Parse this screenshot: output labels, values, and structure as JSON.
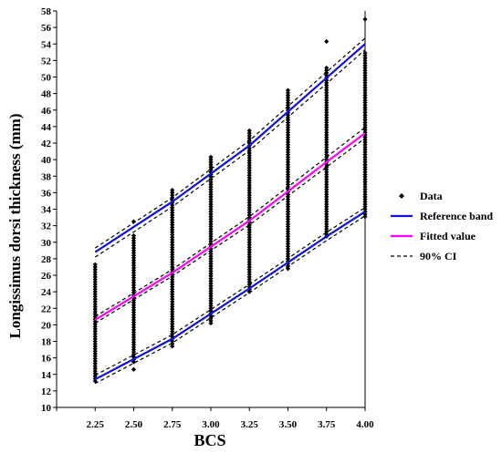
{
  "chart_data": {
    "type": "scatter",
    "xlabel": "BCS",
    "ylabel": "Longissimus dorsi thickness (mm)",
    "x_ticks": [
      "2.25",
      "2.50",
      "2.75",
      "3.00",
      "3.25",
      "3.50",
      "3.75",
      "4.00"
    ],
    "y_ticks": [
      "10",
      "12",
      "14",
      "16",
      "18",
      "20",
      "22",
      "24",
      "26",
      "28",
      "30",
      "32",
      "34",
      "36",
      "38",
      "40",
      "42",
      "44",
      "46",
      "48",
      "50",
      "52",
      "54",
      "56",
      "58"
    ],
    "xlim": [
      2.0,
      4.0
    ],
    "ylim": [
      10,
      58
    ],
    "grid": false,
    "legend_position": "right",
    "colors": {
      "data": "#000000",
      "reference_band": "#1010e0",
      "fitted_value": "#ff00ff",
      "ci": "#000000"
    },
    "legend": [
      {
        "key": "data",
        "label": "Data",
        "symbol": "diamond"
      },
      {
        "key": "reference_band",
        "label": "Reference band",
        "symbol": "line"
      },
      {
        "key": "fitted_value",
        "label": "Fitted value",
        "symbol": "line"
      },
      {
        "key": "ci",
        "label": "90% CI",
        "symbol": "dashed"
      }
    ],
    "data_points": [
      {
        "x": 2.25,
        "ymin": 13.2,
        "ymax": 27.3,
        "outliers": []
      },
      {
        "x": 2.5,
        "ymin": 15.5,
        "ymax": 31.0,
        "outliers": [
          14.6,
          32.5
        ]
      },
      {
        "x": 2.75,
        "ymin": 17.4,
        "ymax": 36.5,
        "outliers": []
      },
      {
        "x": 3.0,
        "ymin": 20.2,
        "ymax": 40.3,
        "outliers": []
      },
      {
        "x": 3.25,
        "ymin": 24.0,
        "ymax": 43.6,
        "outliers": []
      },
      {
        "x": 3.5,
        "ymin": 26.8,
        "ymax": 48.4,
        "outliers": []
      },
      {
        "x": 3.75,
        "ymin": 30.7,
        "ymax": 51.2,
        "outliers": [
          54.3
        ]
      },
      {
        "x": 4.0,
        "ymin": 33.1,
        "ymax": 53.0,
        "outliers": [
          57.0
        ]
      }
    ],
    "series": [
      {
        "name": "Reference band",
        "curves": [
          {
            "x": [
              2.25,
              2.75,
              3.25,
              3.75,
              4.0
            ],
            "y": [
              28.8,
              34.9,
              41.7,
              49.9,
              54.0
            ]
          },
          {
            "x": [
              2.25,
              2.75,
              3.25,
              3.75,
              4.0
            ],
            "y": [
              13.4,
              18.3,
              24.4,
              30.7,
              33.7
            ]
          }
        ]
      },
      {
        "name": "Fitted value",
        "curves": [
          {
            "x": [
              2.25,
              2.75,
              3.25,
              3.75,
              4.0
            ],
            "y": [
              20.6,
              26.3,
              32.6,
              39.7,
              43.2
            ]
          }
        ]
      },
      {
        "name": "90% CI",
        "curves": [
          {
            "x": [
              2.25,
              2.75,
              3.25,
              3.75,
              4.0
            ],
            "y": [
              29.3,
              35.4,
              42.3,
              50.6,
              54.7
            ]
          },
          {
            "x": [
              2.25,
              2.75,
              3.25,
              3.75,
              4.0
            ],
            "y": [
              28.2,
              34.3,
              41.1,
              49.2,
              53.3
            ]
          },
          {
            "x": [
              2.25,
              2.75,
              3.25,
              3.75,
              4.0
            ],
            "y": [
              21.0,
              26.7,
              33.1,
              40.3,
              43.9
            ]
          },
          {
            "x": [
              2.25,
              2.75,
              3.25,
              3.75,
              4.0
            ],
            "y": [
              20.2,
              25.9,
              32.1,
              39.1,
              42.6
            ]
          },
          {
            "x": [
              2.25,
              2.75,
              3.25,
              3.75,
              4.0
            ],
            "y": [
              13.9,
              18.8,
              24.9,
              31.2,
              34.2
            ]
          },
          {
            "x": [
              2.25,
              2.75,
              3.25,
              3.75,
              4.0
            ],
            "y": [
              12.9,
              17.8,
              23.9,
              30.2,
              33.2
            ]
          }
        ]
      }
    ]
  }
}
